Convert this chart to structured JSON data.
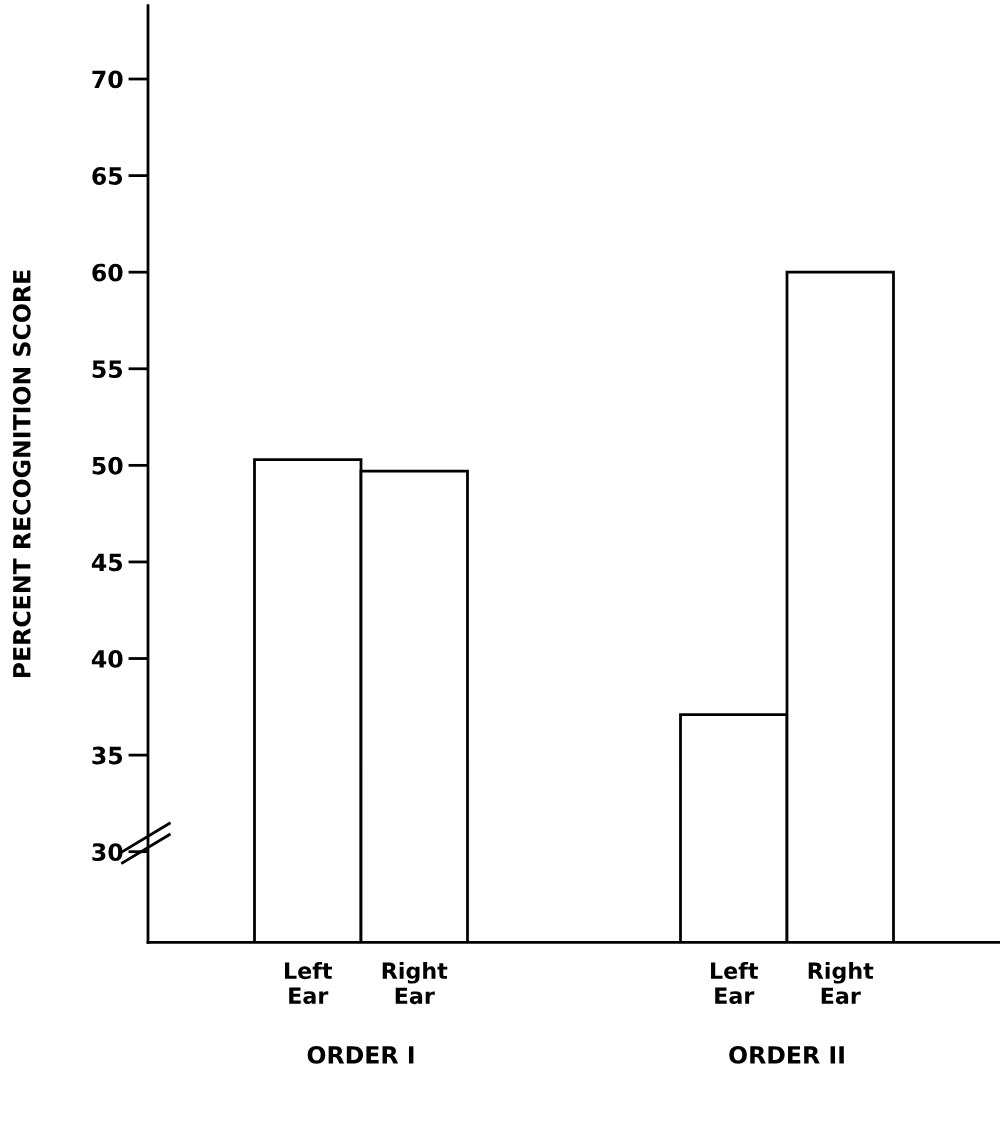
{
  "chart_data": {
    "type": "bar",
    "categories": [
      null,
      "Left Ear",
      "Right Ear",
      null,
      null,
      "Left Ear",
      "Right Ear",
      null
    ],
    "values": [
      null,
      50.3,
      49.7,
      null,
      null,
      37.1,
      60.0,
      null
    ],
    "color": "#ffffff",
    "ylabel": "PERCENT RECOGNITION SCORE",
    "ylim": [
      25.3,
      73.8
    ],
    "yticks": [
      30,
      35,
      40,
      45,
      50,
      55,
      60,
      65,
      70
    ],
    "annotations": [
      "ORDER I",
      "ORDER II"
    ],
    "grid": false
  }
}
